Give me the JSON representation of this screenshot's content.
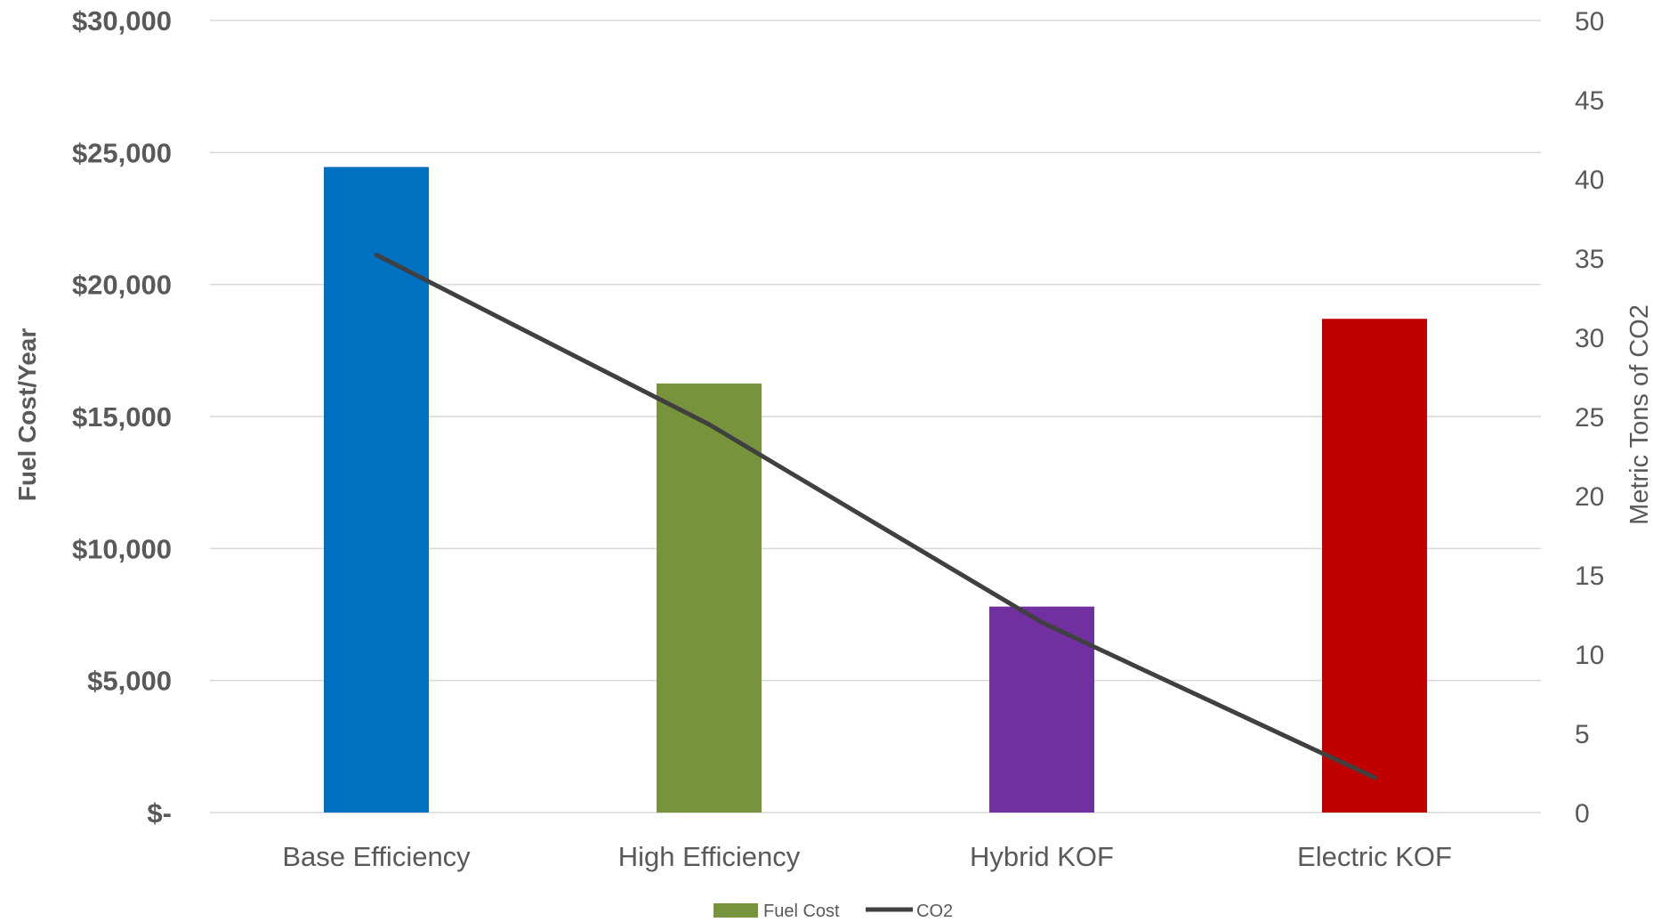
{
  "chart_data": {
    "type": "bar",
    "categories": [
      "Base Efficiency",
      "High Efficiency",
      "Hybrid KOF",
      "Electric KOF"
    ],
    "bar_colors": [
      "#0070C0",
      "#77933C",
      "#7030A0",
      "#C00000"
    ],
    "series": [
      {
        "name": "Fuel Cost",
        "type": "bar",
        "axis": "left",
        "values": [
          24450,
          16250,
          7800,
          18700
        ],
        "legend_color": "#77933C"
      },
      {
        "name": "CO2",
        "type": "line",
        "axis": "right",
        "values": [
          35.2,
          24.5,
          12,
          2.2
        ],
        "color": "#404040"
      }
    ],
    "y_left": {
      "label": "Fuel Cost/Year",
      "ylim": [
        0,
        30000
      ],
      "ticks": [
        0,
        5000,
        10000,
        15000,
        20000,
        25000,
        30000
      ],
      "tick_labels": [
        "$-",
        "$5,000",
        "$10,000",
        "$15,000",
        "$20,000",
        "$25,000",
        "$30,000"
      ]
    },
    "y_right": {
      "label": "Metric Tons of CO2",
      "ylim": [
        0,
        50
      ],
      "ticks": [
        0,
        5,
        10,
        15,
        20,
        25,
        30,
        35,
        40,
        45,
        50
      ],
      "tick_labels": [
        "0",
        "5",
        "10",
        "15",
        "20",
        "25",
        "30",
        "35",
        "40",
        "45",
        "50"
      ]
    },
    "grid": true,
    "legend_position": "bottom"
  }
}
